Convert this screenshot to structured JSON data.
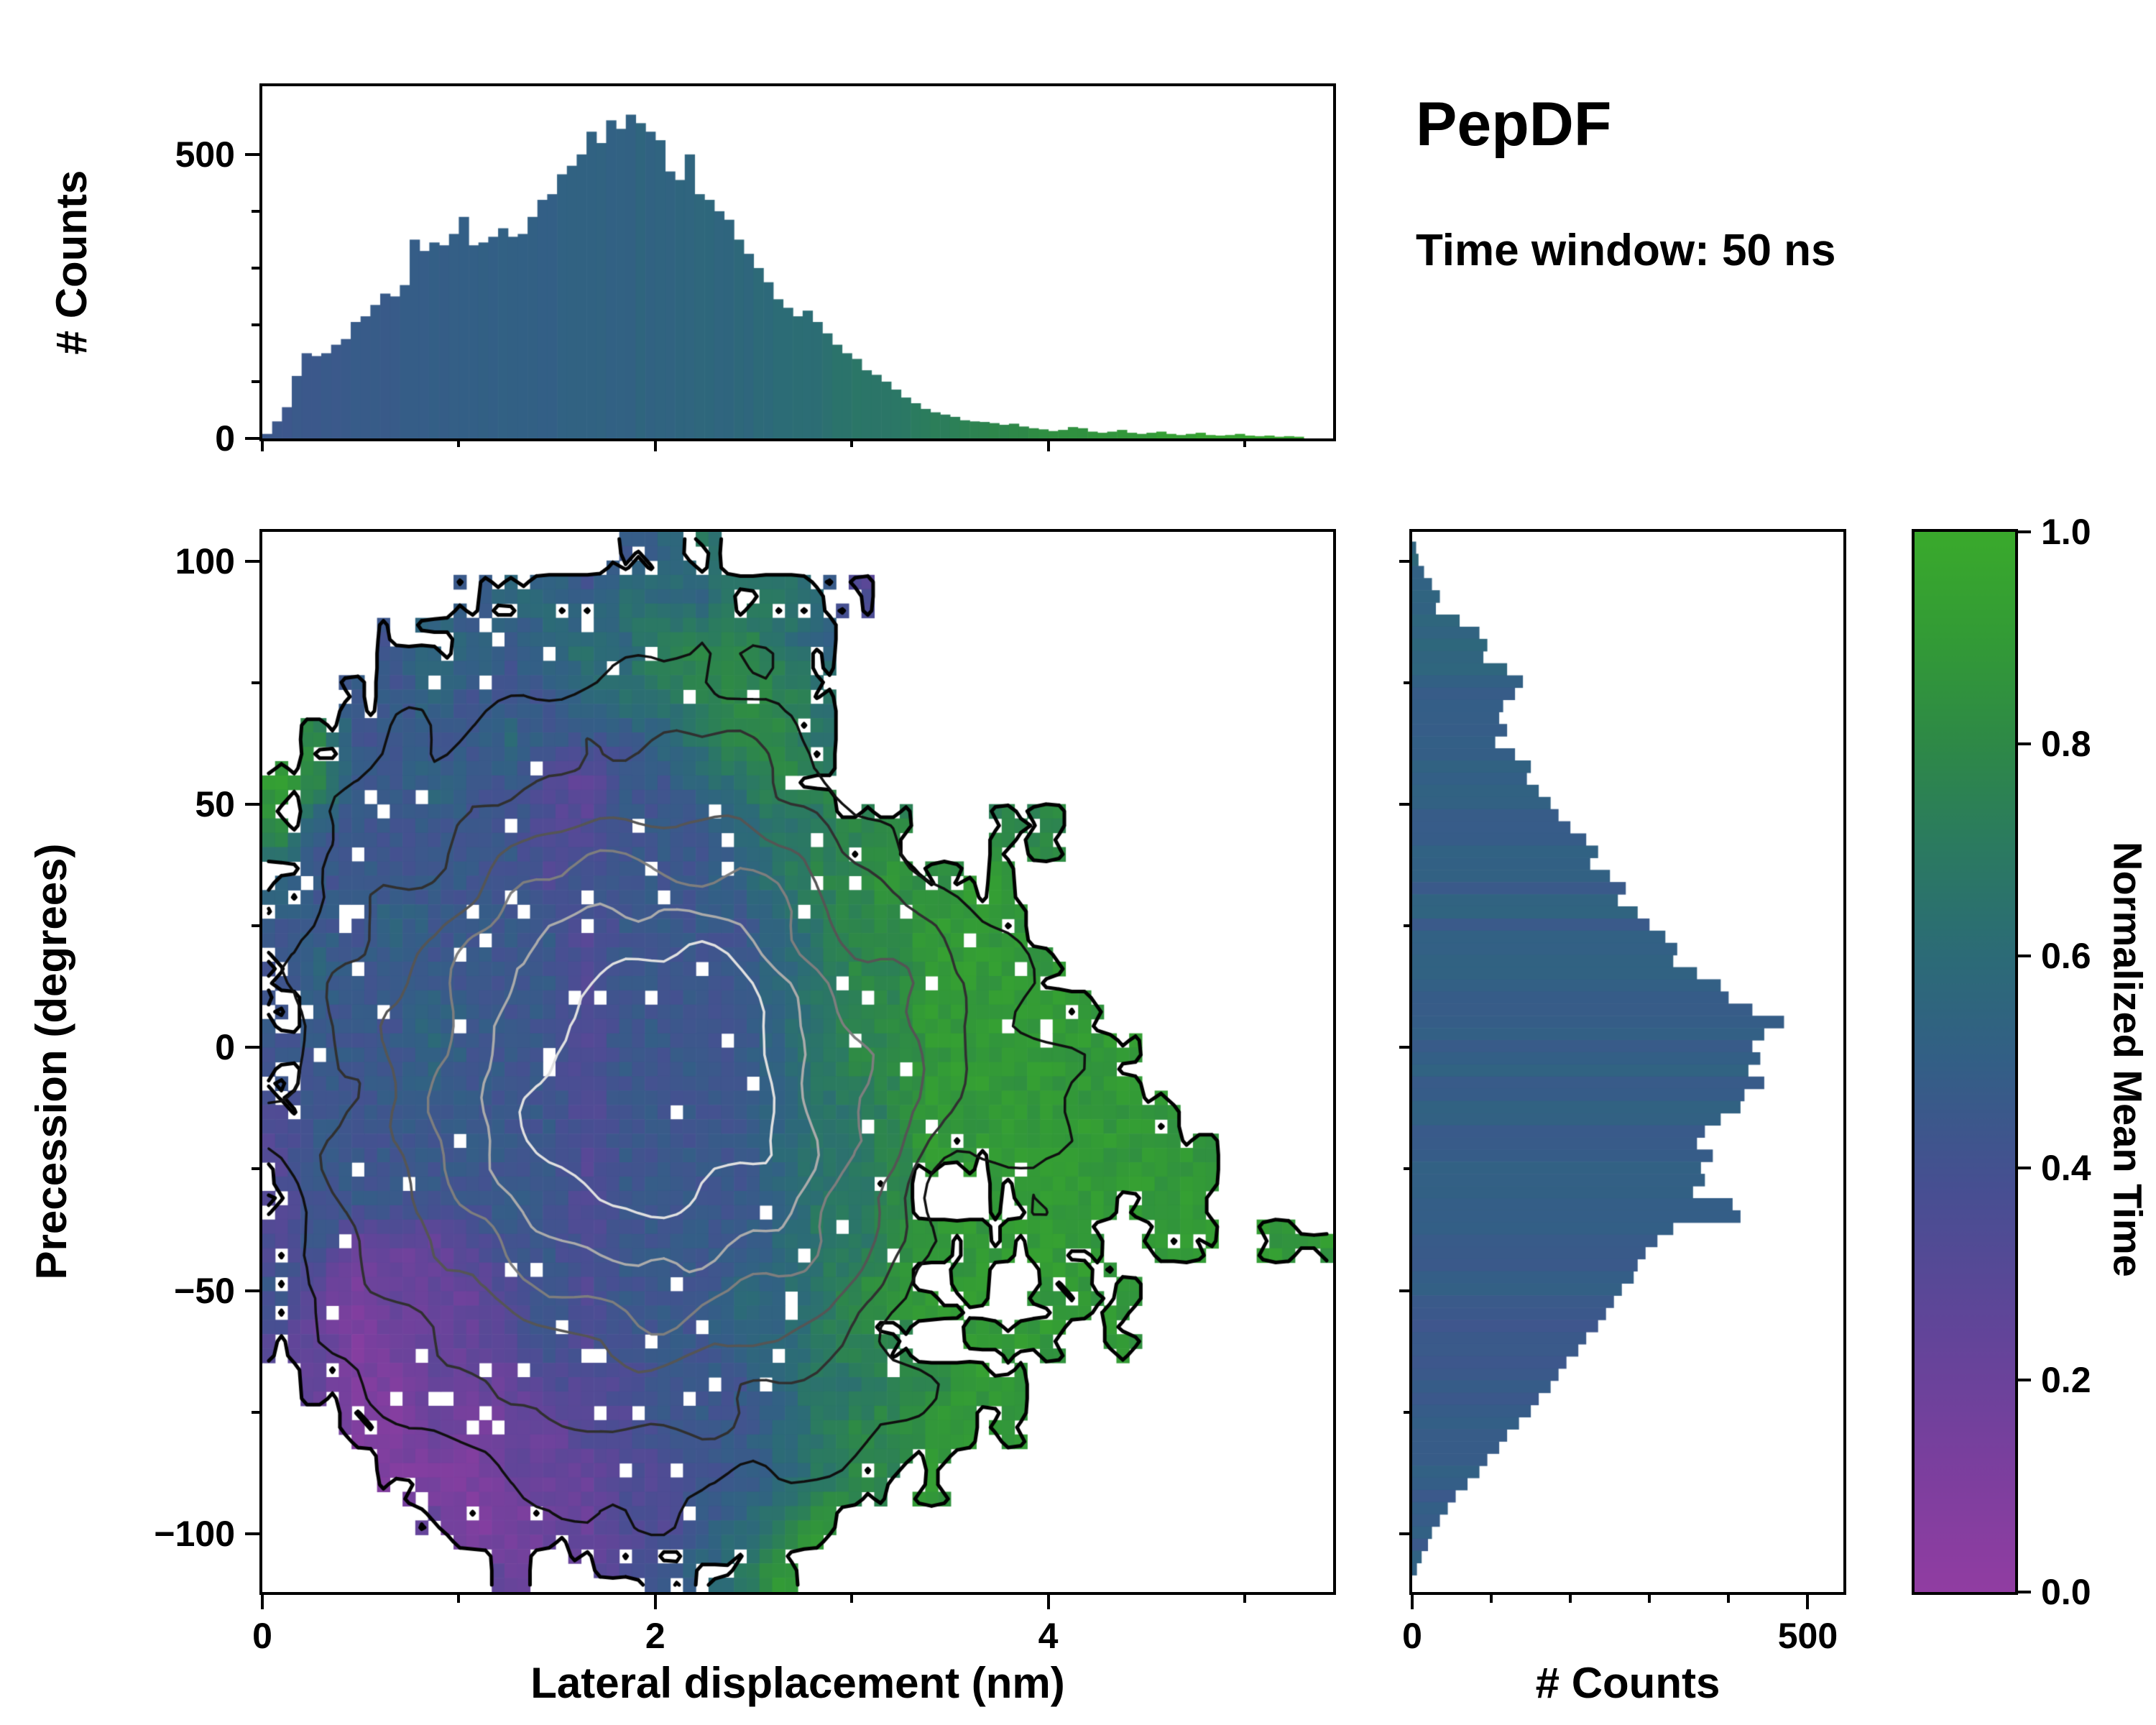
{
  "figure": {
    "title": "PepDF",
    "subtitle": "Time window: 50 ns"
  },
  "colormap": {
    "stops": [
      [
        0.0,
        "#913da2"
      ],
      [
        0.12,
        "#7b3f9e"
      ],
      [
        0.25,
        "#614599"
      ],
      [
        0.38,
        "#474f92"
      ],
      [
        0.5,
        "#335f86"
      ],
      [
        0.6,
        "#2c6b77"
      ],
      [
        0.7,
        "#2b7a61"
      ],
      [
        0.8,
        "#2e8947"
      ],
      [
        0.9,
        "#339b36"
      ],
      [
        1.0,
        "#3aaa2c"
      ]
    ]
  },
  "axes": {
    "main": {
      "xlabel": "Lateral displacement (nm)",
      "ylabel": "Precession (degrees)",
      "xlim": [
        0,
        5.45
      ],
      "ylim": [
        -112,
        106
      ],
      "xticks": {
        "values": [
          0,
          2,
          4
        ],
        "labels": [
          "0",
          "2",
          "4"
        ],
        "minor": [
          1,
          3,
          5
        ]
      },
      "yticks": {
        "values": [
          -100,
          -50,
          0,
          50,
          100
        ],
        "labels": [
          "−100",
          "−50",
          "0",
          "50",
          "100"
        ],
        "minor": [
          -75,
          -25,
          25,
          75
        ]
      }
    },
    "top": {
      "ylabel": "# Counts",
      "ylim": [
        0,
        620
      ],
      "yticks": {
        "values": [
          0,
          500
        ],
        "labels": [
          "0",
          "500"
        ],
        "minor": [
          100,
          200,
          300,
          400
        ]
      },
      "xticks": {
        "values": [
          0,
          2,
          4
        ],
        "minor": [
          1,
          3,
          5
        ]
      }
    },
    "right": {
      "xlabel": "# Counts",
      "xlim": [
        0,
        545
      ],
      "xticks": {
        "values": [
          0,
          500
        ],
        "labels": [
          "0",
          "500"
        ],
        "minor": [
          100,
          200,
          300,
          400
        ]
      },
      "yticks": {
        "values": [
          -100,
          -50,
          0,
          50,
          100
        ],
        "minor": [
          -75,
          -25,
          25,
          75
        ]
      }
    },
    "colorbar": {
      "label": "Normalized Mean Time",
      "range": [
        0,
        1
      ],
      "ticks": {
        "values": [
          0,
          0.2,
          0.4,
          0.6,
          0.8,
          1.0
        ],
        "labels": [
          "0.0",
          "0.2",
          "0.4",
          "0.6",
          "0.8",
          "1.0"
        ]
      }
    }
  },
  "chart_data": [
    {
      "type": "bar",
      "name": "lateral-displacement-marginal-histogram",
      "xlabel": "Lateral displacement (nm)",
      "ylabel": "# Counts",
      "x_start": 0,
      "bin_width": 0.05,
      "xlim": [
        0,
        5.45
      ],
      "ylim": [
        0,
        620
      ],
      "color_rule": {
        "v0": 0.44,
        "k1": 0.05,
        "x1": 2.4,
        "k2": 0.16,
        "vmax": 0.95,
        "jitter": 0.03
      },
      "counts": [
        8,
        30,
        55,
        110,
        150,
        145,
        150,
        165,
        175,
        205,
        215,
        235,
        255,
        250,
        270,
        350,
        330,
        345,
        340,
        360,
        390,
        340,
        345,
        355,
        370,
        355,
        360,
        390,
        420,
        430,
        465,
        480,
        500,
        540,
        520,
        560,
        545,
        570,
        555,
        540,
        525,
        470,
        455,
        500,
        430,
        420,
        400,
        385,
        350,
        325,
        300,
        275,
        245,
        230,
        215,
        225,
        205,
        185,
        165,
        150,
        140,
        120,
        112,
        100,
        86,
        72,
        62,
        52,
        46,
        42,
        38,
        32,
        30,
        29,
        27,
        24,
        26,
        21,
        18,
        16,
        13,
        15,
        20,
        18,
        12,
        10,
        12,
        15,
        10,
        8,
        10,
        12,
        8,
        6,
        8,
        10,
        6,
        5,
        6,
        8,
        5,
        4,
        5,
        3,
        4,
        3
      ]
    },
    {
      "type": "heatmap",
      "name": "precession-vs-lateral-displacement",
      "xlabel": "Lateral displacement (nm)",
      "ylabel": "Precession (degrees)",
      "value_label": "Normalized Mean Time",
      "value_range": [
        0,
        1
      ],
      "x_range": [
        0,
        5.4
      ],
      "y_range": [
        -112,
        106
      ],
      "encoding": "each char is one coarse cell: '.' = no data, digit 0-9 = normalized mean time * 9; rows listed top (y=106) to bottom (y=-112)",
      "rows_top_to_bottom": [
        ".........456................",
        ".....45546556653............",
        "...455456577765.............",
        "..4454445667776.............",
        ".74444544456776.............",
        "874454432445677.............",
        "74444443344456677..77.......",
        "54444443444456778788........",
        "44454444344445677888........",
        "454444443444456778888.......",
        "4444544434444567788888......",
        "44445444344445677888888.....",
        "344444443444456678888888....",
        "3444444434444566788888888...",
        "34444444344445667..888888...",
        "3422234434444566788888.88.88",
        "4212223434445567888.888.....",
        "32122234344455677.888.8.....",
        ".2112223334445667788........",
        "..112122334445677888........",
        "...111222334456778..........",
        "....21122334568.............",
        "......2.234568.............."
      ],
      "contours": {
        "note": "density contours drawn dark (outer, low density) to light (inner, high density); outermost black line traces the occupied-bin boundary",
        "levels": [
          0.16,
          0.3,
          0.44,
          0.57,
          0.69,
          0.8
        ],
        "colors": [
          "#101010",
          "#303030",
          "#555555",
          "#7e7e7e",
          "#ababab",
          "#e0e0e0"
        ],
        "boundary_color": "#000000",
        "density_center": {
          "x": 1.95,
          "y": -8,
          "sigma_x": 1.05,
          "sigma_y": 46
        }
      }
    },
    {
      "type": "bar",
      "name": "precession-marginal-histogram",
      "orientation": "horizontal",
      "xlabel": "# Counts",
      "ylabel": "Precession (degrees)",
      "y_start": 104,
      "bin_width": 2.5,
      "xlim": [
        0,
        545
      ],
      "color_rule": {
        "base": 0.5,
        "jitter": 0.08,
        "teal_peak": {
          "y": 92,
          "s": 12,
          "a": 0.06
        },
        "purple_dip": {
          "y": -70,
          "s": 18,
          "a": 0.04
        }
      },
      "counts_top_to_bottom": [
        5,
        8,
        15,
        25,
        35,
        30,
        60,
        85,
        95,
        90,
        120,
        140,
        130,
        115,
        110,
        120,
        105,
        130,
        150,
        145,
        160,
        175,
        185,
        200,
        220,
        235,
        225,
        250,
        270,
        260,
        285,
        300,
        320,
        335,
        330,
        360,
        390,
        400,
        430,
        470,
        445,
        430,
        440,
        425,
        445,
        420,
        415,
        390,
        370,
        360,
        380,
        365,
        370,
        355,
        405,
        415,
        330,
        310,
        295,
        285,
        280,
        265,
        255,
        245,
        235,
        220,
        210,
        195,
        185,
        175,
        160,
        150,
        135,
        120,
        110,
        95,
        85,
        70,
        55,
        45,
        35,
        25,
        20,
        12,
        6
      ]
    },
    {
      "type": "colorbar",
      "name": "normalized-mean-time-colorbar",
      "label": "Normalized Mean Time",
      "range": [
        0,
        1
      ],
      "tick_labels": [
        "0.0",
        "0.2",
        "0.4",
        "0.6",
        "0.8",
        "1.0"
      ]
    }
  ]
}
